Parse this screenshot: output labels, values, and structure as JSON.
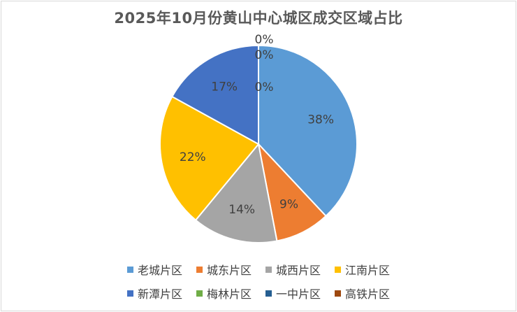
{
  "chart_data": {
    "type": "pie",
    "title": "2025年10月份黄山中心城区成交区域占比",
    "categories": [
      "老城片区",
      "城东片区",
      "城西片区",
      "江南片区",
      "新潭片区",
      "梅林片区",
      "一中片区",
      "高铁片区"
    ],
    "values": [
      38,
      9,
      14,
      22,
      17,
      0,
      0,
      0
    ],
    "labels": [
      "38%",
      "9%",
      "14%",
      "22%",
      "17%",
      "0%",
      "0%",
      "0%"
    ],
    "colors": [
      "#5B9BD5",
      "#ED7D31",
      "#A5A5A5",
      "#FFC000",
      "#4472C4",
      "#70AD47",
      "#255E91",
      "#9E480E"
    ],
    "legend_position": "bottom",
    "start_angle": "12 o'clock, clockwise"
  }
}
